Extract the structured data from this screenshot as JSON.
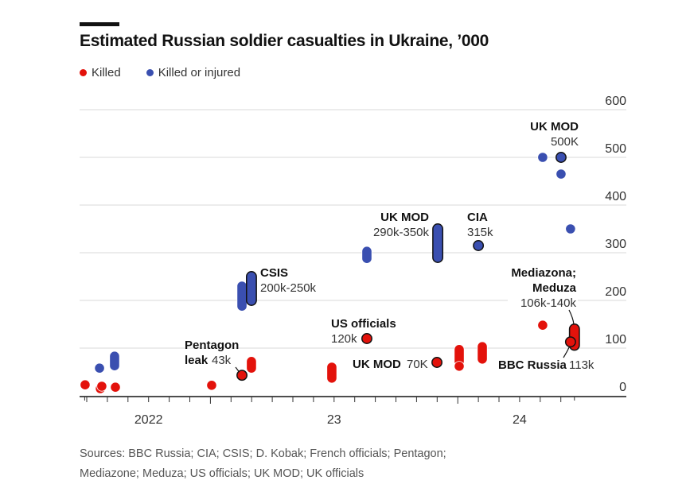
{
  "chart_data": {
    "type": "scatter",
    "title": "Estimated Russian soldier casualties in Ukraine, ’000",
    "xlabel": "",
    "ylabel": "",
    "ylim": [
      0,
      600
    ],
    "yticks": [
      "0",
      "100",
      "200",
      "300",
      "400",
      "500",
      "600"
    ],
    "ytick_values": [
      0,
      100,
      200,
      300,
      400,
      500,
      600
    ],
    "grid": true,
    "x_axis": {
      "unit": "tick intervals (~1.3 months each) from first tick, mid-2022 start",
      "tick_count": 24,
      "labels": [
        {
          "text": "2022",
          "t": 3
        },
        {
          "text": "23",
          "t": 12
        },
        {
          "text": "24",
          "t": 21
        }
      ]
    },
    "legend": {
      "position": "top-left",
      "entries": [
        {
          "label": "Killed",
          "color": "#e3120b"
        },
        {
          "label": "Killed or injured",
          "color": "#3a4fb0"
        }
      ]
    },
    "series": [
      {
        "name": "Killed",
        "color": "#e3120b",
        "points": [
          {
            "t": -0.08,
            "y": 23
          },
          {
            "t": 0.66,
            "y": 15
          },
          {
            "t": 0.73,
            "y": 20
          },
          {
            "t": 1.39,
            "y": 18
          },
          {
            "t": 6.06,
            "y": 22
          },
          {
            "t": 7.53,
            "y": 43,
            "highlight": true
          },
          {
            "t": 7.99,
            "y_low": 58,
            "y_high": 72
          },
          {
            "t": 11.89,
            "y_low": 37,
            "y_high": 60
          },
          {
            "t": 13.59,
            "y": 120,
            "highlight": true
          },
          {
            "t": 16.99,
            "y": 70,
            "highlight": true
          },
          {
            "t": 18.07,
            "y_low": 72,
            "y_high": 97
          },
          {
            "t": 18.07,
            "y": 62
          },
          {
            "t": 19.19,
            "y_low": 77,
            "y_high": 103
          },
          {
            "t": 22.12,
            "y": 148
          },
          {
            "t": 23.66,
            "y_low": 106,
            "y_high": 140,
            "highlight": true
          },
          {
            "t": 23.47,
            "y": 113,
            "highlight": true
          }
        ]
      },
      {
        "name": "Killed or injured",
        "color": "#3a4fb0",
        "points": [
          {
            "t": 0.62,
            "y": 58
          },
          {
            "t": 1.35,
            "y_low": 63,
            "y_high": 83
          },
          {
            "t": 7.53,
            "y_low": 188,
            "y_high": 230
          },
          {
            "t": 7.99,
            "y_low": 200,
            "y_high": 250,
            "highlight": true
          },
          {
            "t": 13.59,
            "y_low": 288,
            "y_high": 303
          },
          {
            "t": 17.03,
            "y_low": 290,
            "y_high": 350,
            "highlight": true
          },
          {
            "t": 19.0,
            "y": 315,
            "highlight": true
          },
          {
            "t": 22.12,
            "y": 500
          },
          {
            "t": 23.01,
            "y": 500,
            "highlight": true
          },
          {
            "t": 23.01,
            "y": 465
          },
          {
            "t": 23.47,
            "y": 350
          }
        ]
      }
    ],
    "annotations": [
      {
        "id": "pentagon",
        "bold": "Pentagon",
        "bold2": "leak",
        "value": "43k"
      },
      {
        "id": "csis",
        "bold": "CSIS",
        "value": "200k-250k"
      },
      {
        "id": "us-officials",
        "bold": "US officials",
        "value": "120k"
      },
      {
        "id": "ukmod-70",
        "bold": "UK MOD",
        "value": "70K"
      },
      {
        "id": "ukmod-range",
        "bold": "UK MOD",
        "value": "290k-350k"
      },
      {
        "id": "cia",
        "bold": "CIA",
        "value": "315k"
      },
      {
        "id": "ukmod-500",
        "bold": "UK MOD",
        "value": "500K"
      },
      {
        "id": "mediazona",
        "bold": "Mediazona;",
        "bold2": "Meduza",
        "value": "106k-140k"
      },
      {
        "id": "bbc",
        "bold": "BBC Russia",
        "value": "113k"
      }
    ]
  },
  "header": {
    "title": "Estimated Russian soldier casualties in Ukraine, ’000"
  },
  "legend": {
    "killed": "Killed",
    "killed_or_injured": "Killed or injured"
  },
  "footer": {
    "sources_line1": "Sources: BBC Russia; CIA; CSIS; D. Kobak; French officials; Pentagon;",
    "sources_line2": "Mediazone; Meduza; US officials; UK MOD; UK officials"
  }
}
